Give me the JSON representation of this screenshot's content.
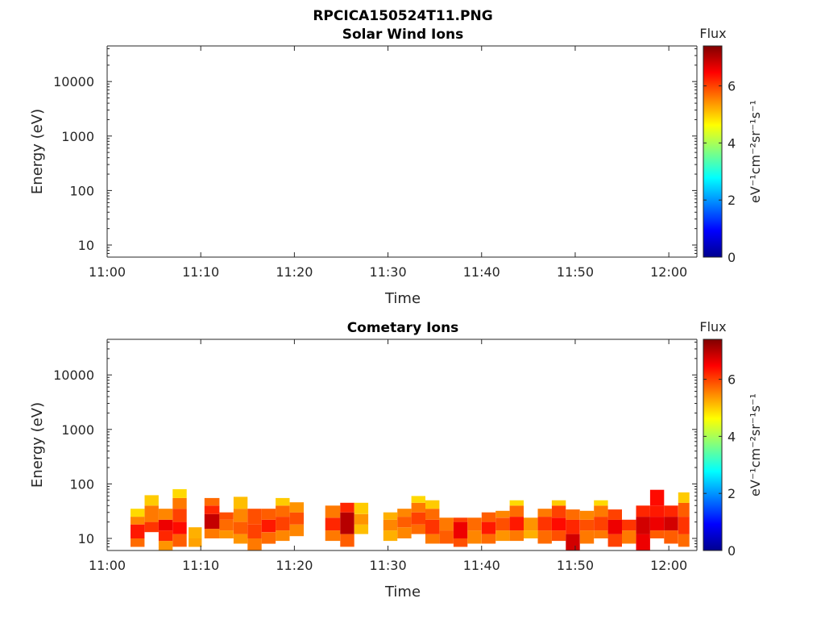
{
  "figure_title": "RPCICA150524T11.PNG",
  "colors": {
    "colormap": [
      "#00008f",
      "#0000ff",
      "#0080ff",
      "#00ffff",
      "#80ff80",
      "#ffff00",
      "#ff8000",
      "#ff0000",
      "#800000"
    ],
    "axis": "#262626"
  },
  "chart_data": [
    {
      "type": "heatmap",
      "title": "Solar Wind Ions",
      "xlabel": "Time",
      "ylabel": "Energy (eV)",
      "xticks": [
        "11:00",
        "11:10",
        "11:20",
        "11:30",
        "11:40",
        "11:50",
        "12:00"
      ],
      "xlim_minutes": [
        0,
        63
      ],
      "yscale": "log",
      "ylim": [
        6,
        45000
      ],
      "yticks": [
        10,
        100,
        1000,
        10000
      ],
      "ytick_labels": [
        "10",
        "100",
        "1000",
        "10000"
      ],
      "grid": false,
      "colorbar": {
        "label": "Flux",
        "unit": "eV⁻¹cm⁻²sr⁻¹s⁻¹",
        "range": [
          0,
          7.4
        ],
        "ticks": [
          "0",
          "2",
          "4",
          "6"
        ]
      },
      "cells": []
    },
    {
      "type": "heatmap",
      "title": "Cometary Ions",
      "xlabel": "Time",
      "ylabel": "Energy (eV)",
      "xticks": [
        "11:00",
        "11:10",
        "11:20",
        "11:30",
        "11:40",
        "11:50",
        "12:00"
      ],
      "xlim_minutes": [
        0,
        63
      ],
      "yscale": "log",
      "ylim": [
        6,
        45000
      ],
      "yticks": [
        10,
        100,
        1000,
        10000
      ],
      "ytick_labels": [
        "10",
        "100",
        "1000",
        "10000"
      ],
      "grid": false,
      "colorbar": {
        "label": "Flux",
        "unit": "eV⁻¹cm⁻²sr⁻¹s⁻¹",
        "range": [
          0,
          7.4
        ],
        "ticks": [
          "0",
          "2",
          "4",
          "6"
        ]
      },
      "cells": [
        {
          "t": 2.5,
          "dt": 1.5,
          "columns": [
            [
              7,
              10,
              5.7
            ],
            [
              10,
              18,
              6.3
            ],
            [
              18,
              25,
              5.5
            ],
            [
              25,
              35,
              4.9
            ]
          ]
        },
        {
          "t": 4.0,
          "dt": 1.5,
          "columns": [
            [
              13,
              20,
              6.1
            ],
            [
              20,
              40,
              5.6
            ],
            [
              40,
              62,
              5.0
            ]
          ]
        },
        {
          "t": 5.5,
          "dt": 1.5,
          "columns": [
            [
              6,
              9,
              5.4
            ],
            [
              9,
              14,
              6.2
            ],
            [
              14,
              22,
              6.6
            ],
            [
              22,
              35,
              5.5
            ]
          ]
        },
        {
          "t": 7.0,
          "dt": 1.5,
          "columns": [
            [
              7,
              12,
              5.8
            ],
            [
              12,
              20,
              6.4
            ],
            [
              20,
              35,
              6.0
            ],
            [
              35,
              55,
              5.6
            ],
            [
              55,
              80,
              4.9
            ]
          ]
        },
        {
          "t": 8.7,
          "dt": 1.4,
          "columns": [
            [
              7,
              10,
              5.3
            ],
            [
              10,
              16,
              5.2
            ]
          ]
        },
        {
          "t": 10.4,
          "dt": 1.6,
          "columns": [
            [
              10,
              15,
              5.6
            ],
            [
              15,
              28,
              6.9
            ],
            [
              28,
              40,
              6.2
            ],
            [
              40,
              55,
              5.7
            ]
          ]
        },
        {
          "t": 12.0,
          "dt": 1.5,
          "columns": [
            [
              10,
              14,
              5.4
            ],
            [
              14,
              22,
              5.7
            ],
            [
              22,
              30,
              5.9
            ]
          ]
        },
        {
          "t": 13.5,
          "dt": 1.5,
          "columns": [
            [
              8,
              12,
              5.4
            ],
            [
              12,
              20,
              5.8
            ],
            [
              20,
              35,
              5.5
            ],
            [
              35,
              58,
              5.1
            ]
          ]
        },
        {
          "t": 15.0,
          "dt": 1.5,
          "columns": [
            [
              6,
              10,
              5.6
            ],
            [
              10,
              18,
              6.0
            ],
            [
              18,
              35,
              5.9
            ]
          ]
        },
        {
          "t": 16.5,
          "dt": 1.5,
          "columns": [
            [
              8,
              13,
              5.7
            ],
            [
              13,
              22,
              6.3
            ],
            [
              22,
              35,
              5.8
            ]
          ]
        },
        {
          "t": 18.0,
          "dt": 1.5,
          "columns": [
            [
              9,
              14,
              5.5
            ],
            [
              14,
              25,
              6.0
            ],
            [
              25,
              40,
              5.7
            ],
            [
              40,
              55,
              5.0
            ]
          ]
        },
        {
          "t": 19.5,
          "dt": 1.5,
          "columns": [
            [
              11,
              18,
              5.5
            ],
            [
              18,
              30,
              5.9
            ],
            [
              30,
              46,
              5.4
            ]
          ]
        },
        {
          "t": 23.3,
          "dt": 1.6,
          "columns": [
            [
              9,
              14,
              5.6
            ],
            [
              14,
              24,
              6.2
            ],
            [
              24,
              40,
              5.6
            ]
          ]
        },
        {
          "t": 24.9,
          "dt": 1.5,
          "columns": [
            [
              7,
              12,
              5.8
            ],
            [
              12,
              30,
              7.0
            ],
            [
              30,
              45,
              6.2
            ]
          ]
        },
        {
          "t": 26.4,
          "dt": 1.5,
          "columns": [
            [
              12,
              18,
              5.1
            ],
            [
              18,
              28,
              5.4
            ],
            [
              28,
              45,
              5.0
            ]
          ]
        },
        {
          "t": 29.5,
          "dt": 1.5,
          "columns": [
            [
              9,
              14,
              5.2
            ],
            [
              14,
              22,
              5.5
            ],
            [
              22,
              30,
              5.2
            ]
          ]
        },
        {
          "t": 31.0,
          "dt": 1.5,
          "columns": [
            [
              10,
              16,
              5.5
            ],
            [
              16,
              25,
              5.8
            ],
            [
              25,
              35,
              5.5
            ]
          ]
        },
        {
          "t": 32.5,
          "dt": 1.5,
          "columns": [
            [
              12,
              18,
              5.7
            ],
            [
              18,
              30,
              6.0
            ],
            [
              30,
              45,
              5.6
            ],
            [
              45,
              60,
              4.9
            ]
          ]
        },
        {
          "t": 34.0,
          "dt": 1.5,
          "columns": [
            [
              8,
              12,
              5.6
            ],
            [
              12,
              22,
              6.1
            ],
            [
              22,
              35,
              5.7
            ],
            [
              35,
              50,
              5.0
            ]
          ]
        },
        {
          "t": 35.5,
          "dt": 1.5,
          "columns": [
            [
              8,
              14,
              5.8
            ],
            [
              14,
              24,
              5.6
            ]
          ]
        },
        {
          "t": 37.0,
          "dt": 1.5,
          "columns": [
            [
              7,
              10,
              5.9
            ],
            [
              10,
              20,
              6.6
            ],
            [
              20,
              24,
              6.0
            ]
          ]
        },
        {
          "t": 38.5,
          "dt": 1.5,
          "columns": [
            [
              8,
              14,
              5.5
            ],
            [
              14,
              24,
              5.7
            ]
          ]
        },
        {
          "t": 40.0,
          "dt": 1.5,
          "columns": [
            [
              8,
              12,
              5.7
            ],
            [
              12,
              20,
              6.3
            ],
            [
              20,
              30,
              5.8
            ]
          ]
        },
        {
          "t": 41.5,
          "dt": 1.5,
          "columns": [
            [
              9,
              14,
              5.4
            ],
            [
              14,
              24,
              5.9
            ],
            [
              24,
              32,
              5.5
            ]
          ]
        },
        {
          "t": 43.0,
          "dt": 1.5,
          "columns": [
            [
              9,
              14,
              5.6
            ],
            [
              14,
              25,
              6.3
            ],
            [
              25,
              40,
              5.7
            ],
            [
              40,
              50,
              4.9
            ]
          ]
        },
        {
          "t": 44.5,
          "dt": 1.5,
          "columns": [
            [
              10,
              14,
              5.2
            ],
            [
              14,
              24,
              5.4
            ]
          ]
        },
        {
          "t": 46.0,
          "dt": 1.5,
          "columns": [
            [
              8,
              14,
              5.7
            ],
            [
              14,
              25,
              6.1
            ],
            [
              25,
              35,
              5.6
            ]
          ]
        },
        {
          "t": 47.5,
          "dt": 1.5,
          "columns": [
            [
              9,
              14,
              5.9
            ],
            [
              14,
              24,
              6.4
            ],
            [
              24,
              40,
              6.0
            ],
            [
              40,
              50,
              5.0
            ]
          ]
        },
        {
          "t": 49.0,
          "dt": 1.5,
          "columns": [
            [
              6,
              12,
              6.8
            ],
            [
              12,
              22,
              6.2
            ],
            [
              22,
              34,
              5.7
            ]
          ]
        },
        {
          "t": 50.5,
          "dt": 1.5,
          "columns": [
            [
              8,
              14,
              5.6
            ],
            [
              14,
              22,
              5.9
            ],
            [
              22,
              32,
              5.5
            ]
          ]
        },
        {
          "t": 52.0,
          "dt": 1.5,
          "columns": [
            [
              10,
              14,
              5.6
            ],
            [
              14,
              25,
              6.0
            ],
            [
              25,
              40,
              5.6
            ],
            [
              40,
              50,
              4.9
            ]
          ]
        },
        {
          "t": 53.5,
          "dt": 1.5,
          "columns": [
            [
              7,
              12,
              6.0
            ],
            [
              12,
              22,
              6.6
            ],
            [
              22,
              34,
              6.0
            ]
          ]
        },
        {
          "t": 55.0,
          "dt": 1.5,
          "columns": [
            [
              8,
              14,
              5.6
            ],
            [
              14,
              22,
              6.1
            ]
          ]
        },
        {
          "t": 56.5,
          "dt": 1.5,
          "columns": [
            [
              6,
              12,
              6.6
            ],
            [
              12,
              25,
              6.8
            ],
            [
              25,
              40,
              6.2
            ]
          ]
        },
        {
          "t": 58.0,
          "dt": 1.5,
          "columns": [
            [
              10,
              14,
              5.8
            ],
            [
              14,
              25,
              6.6
            ],
            [
              25,
              40,
              6.3
            ],
            [
              40,
              78,
              6.4
            ]
          ]
        },
        {
          "t": 59.5,
          "dt": 1.5,
          "columns": [
            [
              8,
              14,
              5.8
            ],
            [
              14,
              25,
              6.8
            ],
            [
              25,
              40,
              6.2
            ]
          ]
        },
        {
          "t": 61.0,
          "dt": 1.2,
          "columns": [
            [
              7,
              12,
              5.7
            ],
            [
              12,
              25,
              6.1
            ],
            [
              25,
              45,
              5.8
            ],
            [
              45,
              70,
              5.0
            ]
          ]
        }
      ]
    }
  ]
}
